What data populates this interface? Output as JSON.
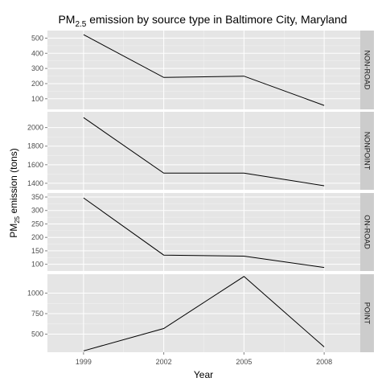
{
  "chart_data": {
    "type": "line",
    "title": {
      "prefix": "PM",
      "subscript": "2.5",
      "suffix": " emission by source type in Baltimore City, Maryland"
    },
    "xlabel": "Year",
    "ylabel": {
      "prefix": "PM",
      "subscript": "25",
      "suffix": " emission (tons)"
    },
    "x": [
      1999,
      2002,
      2005,
      2008
    ],
    "x_ticks": [
      "1999",
      "2002",
      "2005",
      "2008"
    ],
    "xlim": [
      1997.65,
      2009.35
    ],
    "grid": true,
    "facets": [
      {
        "label": "NON-ROAD",
        "values": [
          522.9,
          240.8,
          248.9,
          55.8
        ],
        "ylim": [
          30,
          550
        ],
        "yticks": [
          100,
          200,
          300,
          400,
          500
        ],
        "ytick_labels": [
          "100",
          "200",
          "300",
          "400",
          "500"
        ]
      },
      {
        "label": "NONPOINT",
        "values": [
          2107.6,
          1509.5,
          1509.5,
          1373.2
        ],
        "ylim": [
          1330,
          2170
        ],
        "yticks": [
          1400,
          1600,
          1800,
          2000
        ],
        "ytick_labels": [
          "1400",
          "1600",
          "1800",
          "2000"
        ]
      },
      {
        "label": "ON-ROAD",
        "values": [
          346.8,
          134.3,
          130.4,
          88.3
        ],
        "ylim": [
          75,
          365
        ],
        "yticks": [
          100,
          150,
          200,
          250,
          300,
          350
        ],
        "ytick_labels": [
          "100",
          "150",
          "200",
          "250",
          "300",
          "350"
        ]
      },
      {
        "label": "POINT",
        "values": [
          296.8,
          569.3,
          1202.5,
          344.97
        ],
        "ylim": [
          280,
          1230
        ],
        "yticks": [
          500,
          750,
          1000
        ],
        "ytick_labels": [
          "500",
          "750",
          "1000"
        ]
      }
    ],
    "colors": {
      "panel": "#e5e5e5",
      "grid": "#ffffff",
      "strip": "#cccccc",
      "line": "#000000"
    }
  }
}
